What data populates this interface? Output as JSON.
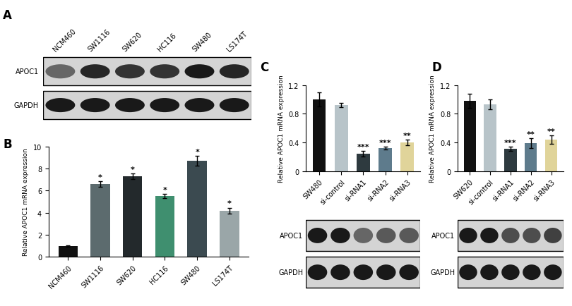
{
  "chart_data": [
    {
      "type": "bar",
      "panel": "B",
      "y_label": "Relative APOC1 mRNA expression",
      "categories": [
        "NCM460",
        "SW1116",
        "SW620",
        "HC116",
        "SW480",
        "LS174T"
      ],
      "values": [
        1.0,
        6.6,
        7.3,
        5.5,
        8.7,
        4.2
      ],
      "errors": [
        0.05,
        0.25,
        0.25,
        0.2,
        0.45,
        0.25
      ],
      "significance": [
        null,
        "*",
        "*",
        "*",
        "*",
        "*"
      ],
      "colors": [
        "#111111",
        "#5c6b6e",
        "#23292c",
        "#3f8f6f",
        "#3b4a50",
        "#9aa6a8"
      ],
      "ylim": [
        0,
        10
      ],
      "yticks": [
        0,
        2,
        4,
        6,
        8,
        10
      ]
    },
    {
      "type": "bar",
      "panel": "C",
      "y_label": "Relative APOC1 mRNA expression",
      "categories": [
        "SW480",
        "si-control",
        "si-RNA1",
        "si-RNA2",
        "si-RNA3"
      ],
      "values": [
        1.0,
        0.92,
        0.24,
        0.32,
        0.4
      ],
      "errors": [
        0.1,
        0.03,
        0.04,
        0.02,
        0.04
      ],
      "significance": [
        null,
        null,
        "***",
        "***",
        "**"
      ],
      "colors": [
        "#111111",
        "#b8c4c9",
        "#2e3a3f",
        "#5e7b8c",
        "#e0d49a"
      ],
      "ylim": [
        0,
        1.2
      ],
      "yticks": [
        0,
        0.4,
        0.8,
        1.2
      ]
    },
    {
      "type": "bar",
      "panel": "D",
      "y_label": "Relative APOC1 mRNA expression",
      "categories": [
        "SW620",
        "si-control",
        "si-RNA1",
        "si-RNA2",
        "si-RNA3"
      ],
      "values": [
        0.98,
        0.93,
        0.31,
        0.39,
        0.44
      ],
      "errors": [
        0.1,
        0.07,
        0.03,
        0.07,
        0.06
      ],
      "significance": [
        null,
        null,
        "***",
        "**",
        "**"
      ],
      "colors": [
        "#111111",
        "#b8c4c9",
        "#2e3a3f",
        "#5e7b8c",
        "#e0d49a"
      ],
      "ylim": [
        0,
        1.2
      ],
      "yticks": [
        0,
        0.4,
        0.8,
        1.2
      ]
    }
  ],
  "blots": [
    {
      "panel": "A",
      "lanes": [
        "NCM460",
        "SW1116",
        "SW620",
        "HC116",
        "SW480",
        "LS174T"
      ],
      "rows": [
        {
          "label": "APOC1",
          "band_intensity": [
            0.6,
            0.85,
            0.8,
            0.8,
            0.9,
            0.85
          ]
        },
        {
          "label": "GAPDH",
          "band_intensity": [
            0.9,
            0.9,
            0.9,
            0.9,
            0.9,
            0.9
          ]
        }
      ]
    },
    {
      "rows": [
        {
          "label": "APOC1",
          "band_intensity": [
            0.9,
            0.9,
            0.6,
            0.65,
            0.65
          ]
        },
        {
          "label": "GAPDH",
          "band_intensity": [
            0.9,
            0.9,
            0.9,
            0.9,
            0.9
          ]
        }
      ]
    },
    {
      "rows": [
        {
          "label": "APOC1",
          "band_intensity": [
            0.9,
            0.9,
            0.7,
            0.7,
            0.75
          ]
        },
        {
          "label": "GAPDH",
          "band_intensity": [
            0.9,
            0.9,
            0.9,
            0.9,
            0.9
          ]
        }
      ]
    }
  ]
}
